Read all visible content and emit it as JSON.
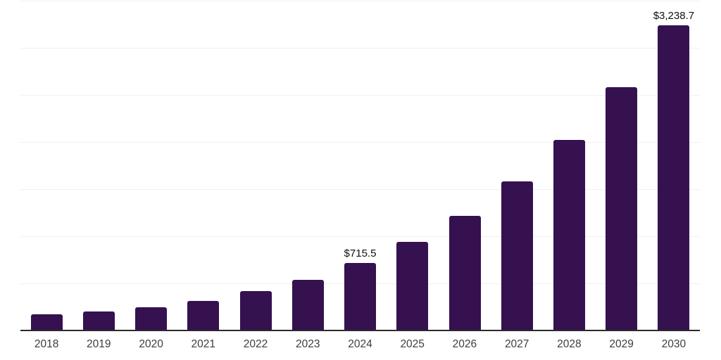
{
  "chart_data": {
    "type": "bar",
    "title": "",
    "xlabel": "",
    "ylabel": "",
    "categories": [
      "2018",
      "2019",
      "2020",
      "2021",
      "2022",
      "2023",
      "2024",
      "2025",
      "2026",
      "2027",
      "2028",
      "2029",
      "2030"
    ],
    "values": [
      170,
      205,
      248,
      315,
      415,
      535,
      715.5,
      940,
      1220,
      1580,
      2020,
      2585,
      3238.7
    ],
    "data_labels": [
      "",
      "",
      "",
      "",
      "",
      "",
      "$715.5",
      "",
      "",
      "",
      "",
      "",
      "$3,238.7"
    ],
    "ylim": [
      0,
      3500
    ],
    "gridline_step": 500,
    "grid": true,
    "legend_position": "none",
    "colors": {
      "bar": "#351150",
      "axis": "#2b2b2b",
      "gridline": "#f0f0f0",
      "tick_label": "#3d3d3d",
      "value_label": "#0f0f0f"
    }
  }
}
